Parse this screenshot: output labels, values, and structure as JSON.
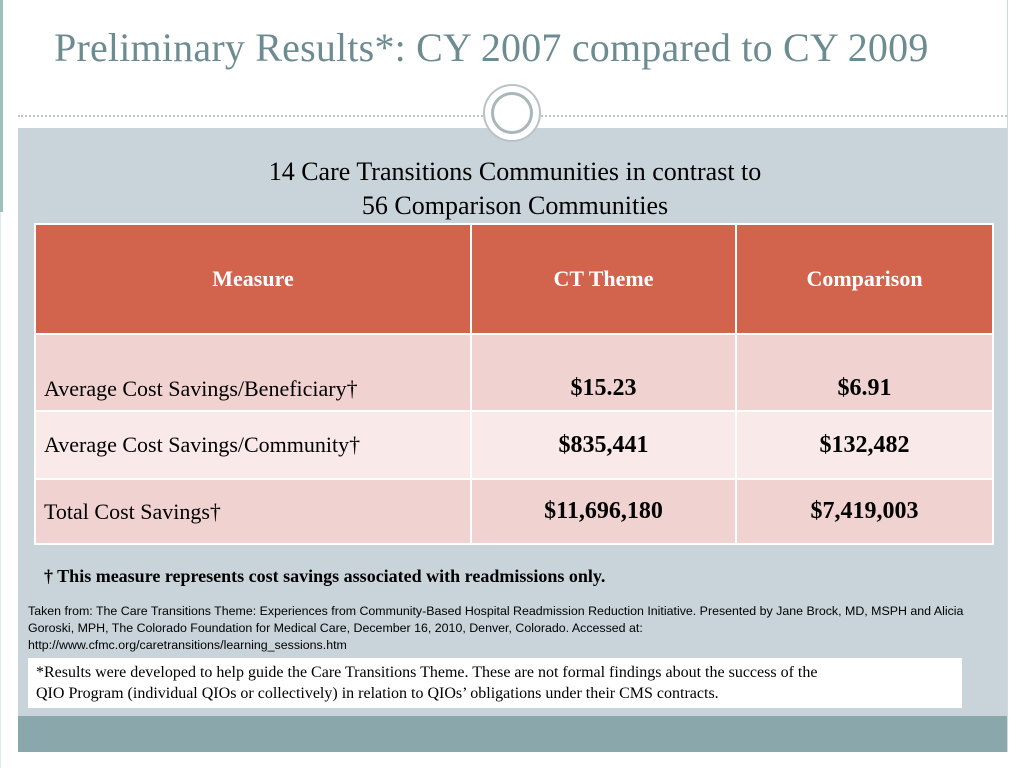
{
  "slide": {
    "title": "Preliminary Results*:  CY 2007 compared to CY 2009",
    "subtitle_line1": "14 Care Transitions Communities in contrast to",
    "subtitle_line2": "56 Comparison Communities"
  },
  "table": {
    "headers": [
      "Measure",
      "CT Theme",
      "Comparison"
    ],
    "rows": [
      {
        "measure": "Average Cost Savings/Beneficiary†",
        "ct_theme": "$15.23",
        "comparison": "$6.91"
      },
      {
        "measure": "Average Cost Savings/Community†",
        "ct_theme": "$835,441",
        "comparison": "$132,482"
      },
      {
        "measure": "Total Cost Savings†",
        "ct_theme": "$11,696,180",
        "comparison": "$7,419,003"
      }
    ]
  },
  "footnote": "† This measure represents cost savings associated with readmissions only.",
  "source_line1": "Taken from:  The Care Transitions Theme: Experiences from Community-Based Hospital Readmission Reduction Initiative.  Presented by Jane Brock, MD, MSPH and Alicia",
  "source_line2": "Goroski, MPH, The Colorado Foundation for Medical Care, December 16, 2010, Denver, Colorado.  Accessed at:",
  "source_line3": "http://www.cfmc.org/caretransitions/learning_sessions.htm",
  "disclaimer_line1": "*Results were developed to help guide the Care Transitions Theme.  These are not formal findings about the success of the",
  "disclaimer_line2": "QIO Program (individual QIOs or collectively) in relation to QIOs’ obligations under their CMS contracts.",
  "colors": {
    "title": "#6d8c92",
    "header_fill": "#d2634d",
    "row_dark": "#f0d3d1",
    "row_light": "#f9e9e8",
    "panel": "#c9d4da",
    "bottom_band": "#8aa8ab"
  }
}
